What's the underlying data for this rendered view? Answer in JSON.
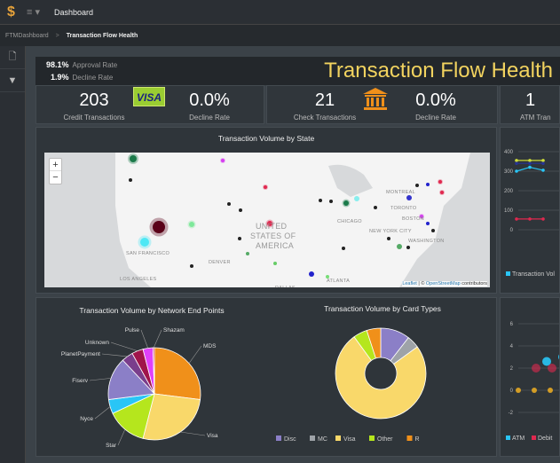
{
  "topbar": {
    "logo": "$",
    "menu": "≡ ▾",
    "title": "Dashboard"
  },
  "breadcrumb": {
    "parent": "FTMDashboard",
    "separator": ">",
    "current": "Transaction Flow Health"
  },
  "sidebar": {
    "items": [
      {
        "icon": "document-icon",
        "glyph": "🗋"
      },
      {
        "icon": "filter-icon",
        "glyph": "▼"
      }
    ]
  },
  "header": {
    "approval_value": "98.1%",
    "approval_label": "Approval Rate",
    "decline_value": "1.9%",
    "decline_label": "Decline Rate",
    "title": "Transaction Flow Health"
  },
  "kpis": {
    "credit": {
      "value": "203",
      "label": "Credit Transactions",
      "badge": "VISA",
      "decline_value": "0.0%",
      "decline_label": "Decline Rate"
    },
    "check": {
      "value": "21",
      "label": "Check Transactions",
      "icon": "bank-icon",
      "decline_value": "0.0%",
      "decline_label": "Decline Rate"
    },
    "atm": {
      "value": "1",
      "label": "ATM Tran"
    }
  },
  "map": {
    "title": "Transaction Volume by State",
    "zoom_in": "+",
    "zoom_out": "−",
    "attribution_leaflet": "Leaflet",
    "attribution_sep": " | © ",
    "attribution_osm": "OpenStreetMap",
    "attribution_tail": " contributors",
    "labels": [
      "SEATTLE",
      "DENVER",
      "SAN FRANCISCO",
      "LOS ANGELES",
      "DALLAS",
      "ATLANTA",
      "CHICAGO",
      "NEW YORK CITY",
      "TORONTO",
      "MONTREAL",
      "BOSTON",
      "WASHINGTON",
      "UNITED",
      "STATES OF",
      "AMERICA"
    ]
  },
  "chart_data": [
    {
      "type": "pie",
      "title": "Transaction Volume by Network End Points",
      "categories": [
        "MDS",
        "Visa",
        "Star",
        "Nyce",
        "Fiserv",
        "PlanetPayment",
        "Unknown",
        "Pulse",
        "Shazam"
      ],
      "values": [
        27,
        27,
        14,
        5,
        15,
        4,
        4,
        3.5,
        0.5
      ],
      "colors": [
        "#f0901a",
        "#f9d86a",
        "#b5e61d",
        "#29c5f6",
        "#8b7fc7",
        "#7a3e8c",
        "#a0144b",
        "#e040fb",
        "#c2185b"
      ]
    },
    {
      "type": "pie",
      "donut": true,
      "title": "Transaction Volume by Card Types",
      "categories": [
        "Disc",
        "MC",
        "Visa",
        "Other",
        "R"
      ],
      "values": [
        10.5,
        4.5,
        75,
        5,
        5
      ],
      "colors": [
        "#8b7fc7",
        "#9ea3a8",
        "#f9d86a",
        "#b5e61d",
        "#f0901a"
      ],
      "legend": "bottom"
    },
    {
      "type": "line",
      "title": "",
      "yticks": [
        "400",
        "300",
        "200",
        "100",
        "0"
      ],
      "ylim": [
        0,
        400
      ],
      "series": [
        {
          "name": "Transaction Vol",
          "color": "#29c5f6",
          "values": [
            300,
            320,
            305
          ]
        },
        {
          "color": "#cddc39",
          "values": [
            355,
            355,
            355
          ]
        },
        {
          "color": "#283593",
          "values": [
            340,
            340,
            340
          ]
        },
        {
          "color": "#e0284f",
          "values": [
            55,
            55,
            55
          ]
        }
      ],
      "legend": "bottom"
    },
    {
      "type": "scatter",
      "title": "",
      "yticks": [
        "6",
        "4",
        "2",
        "0",
        "-2"
      ],
      "ylim": [
        -2,
        6
      ],
      "series": [
        {
          "name": "ATM",
          "color": "#29c5f6",
          "values": [
            2.6,
            3.0
          ]
        },
        {
          "name": "Debit",
          "color": "#e0284f",
          "values": [
            2,
            2
          ]
        },
        {
          "color": "#e5a823",
          "values": [
            0,
            0,
            0
          ]
        }
      ],
      "legend": "bottom"
    }
  ]
}
